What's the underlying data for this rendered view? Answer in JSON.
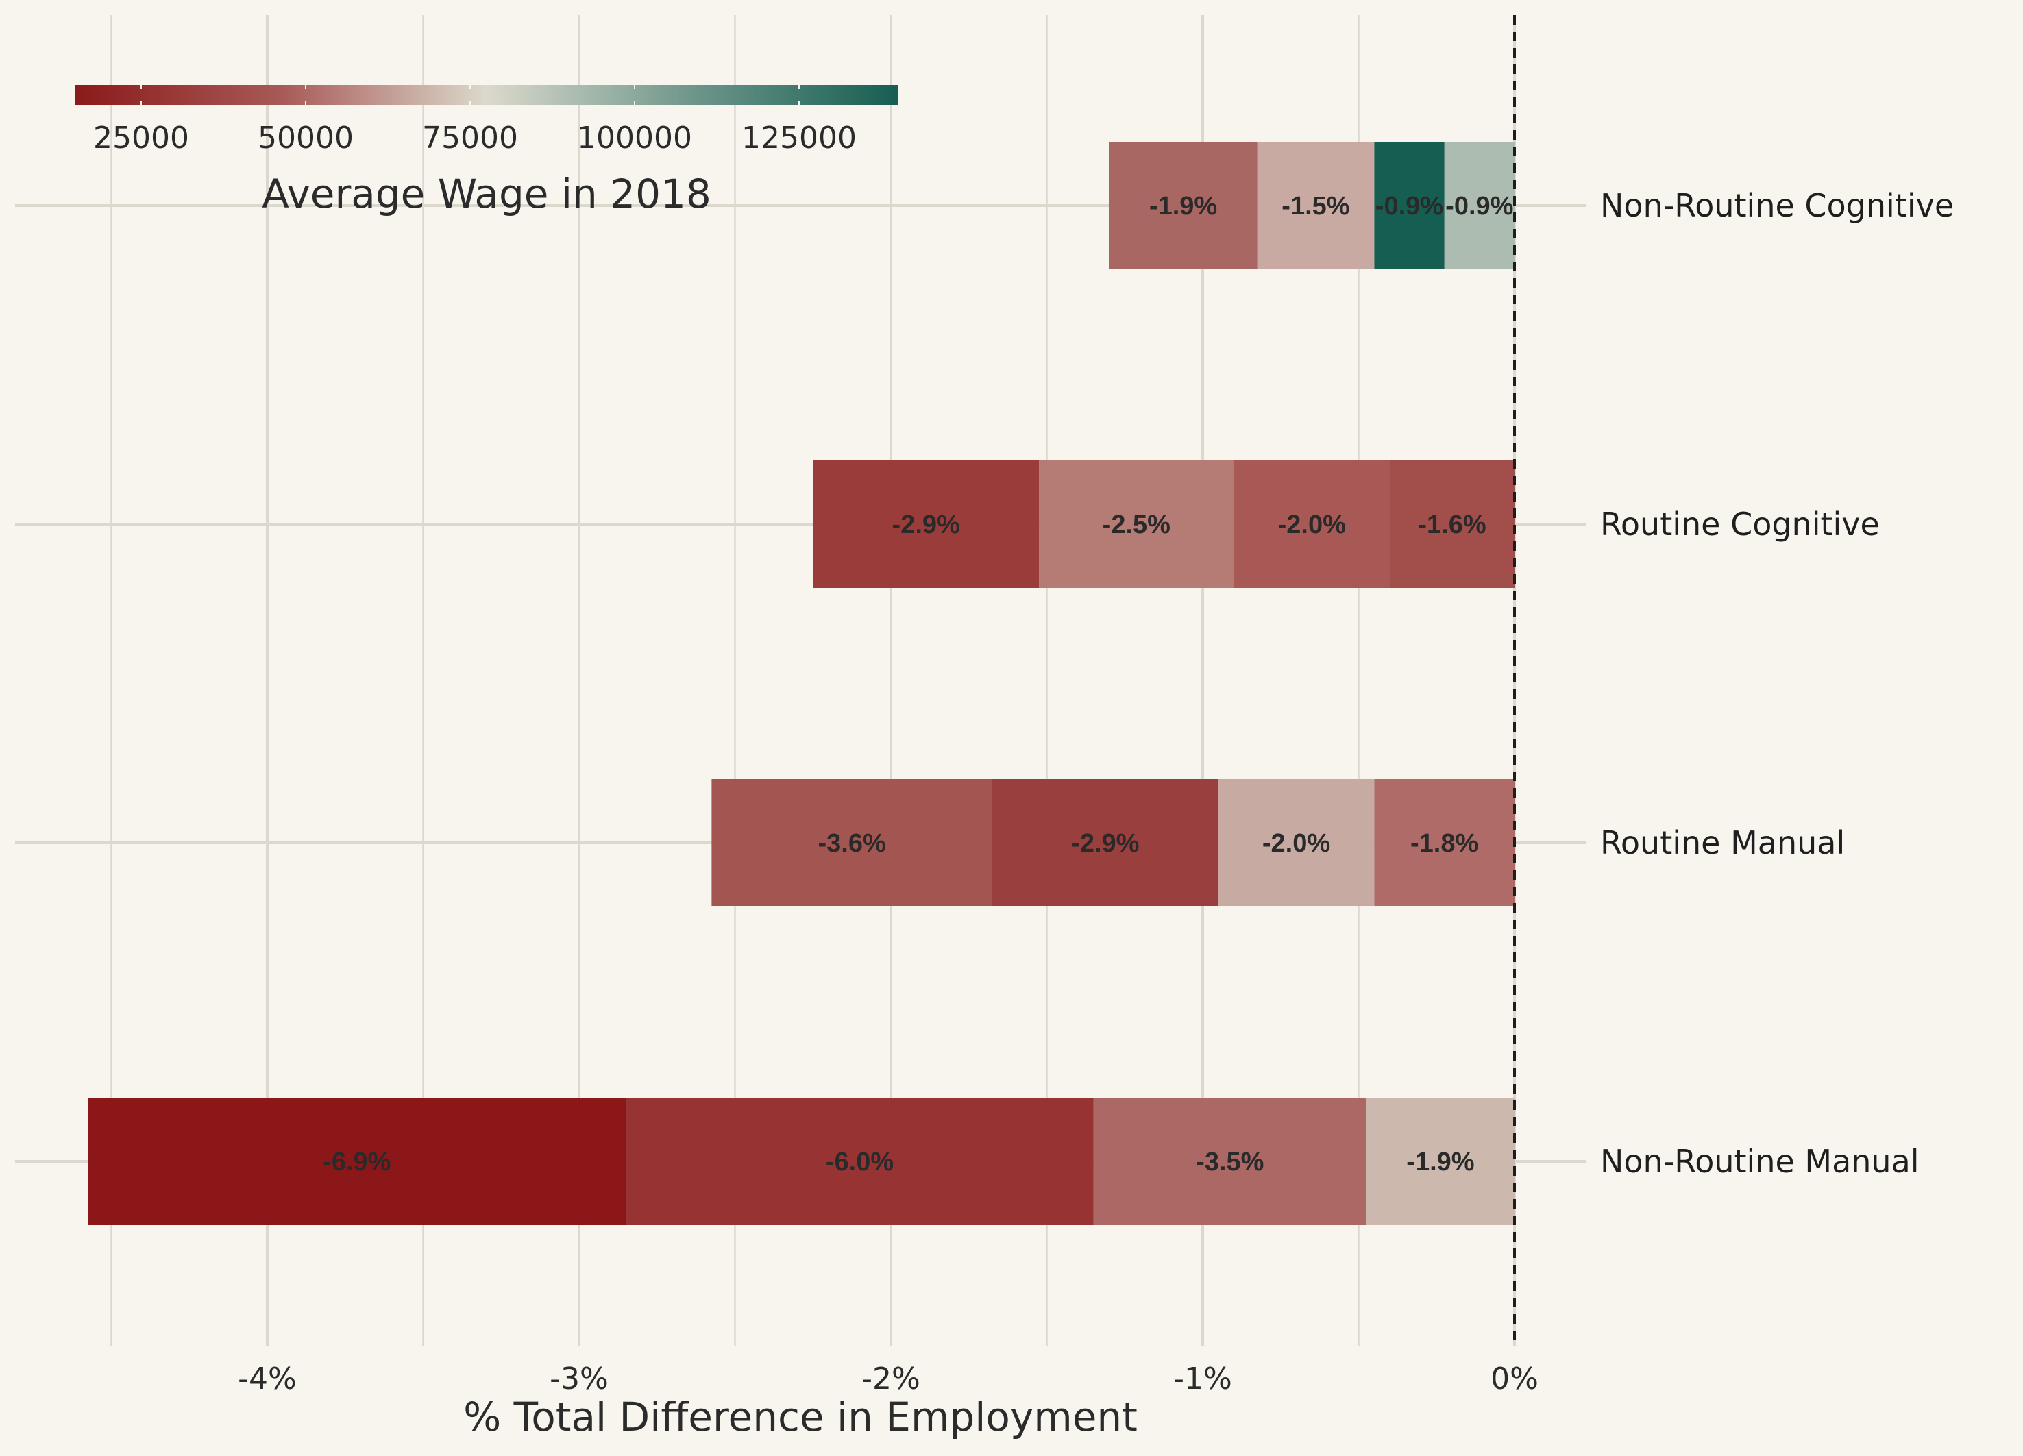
{
  "chart_data": {
    "type": "bar",
    "orientation": "horizontal",
    "stacked": true,
    "xlabel": "% Total Difference in Employment",
    "xlim": [
      -4.6,
      0.15
    ],
    "x_ticks": [
      -4,
      -3,
      -2,
      -1,
      0
    ],
    "x_tick_labels": [
      "-4%",
      "-3%",
      "-2%",
      "-1%",
      "0%"
    ],
    "grid": true,
    "reference_line": {
      "x": 0,
      "style": "dashed"
    },
    "legend": {
      "title": "Average Wage in 2018",
      "type": "colorbar",
      "placement": "top-left",
      "range": [
        15000,
        140000
      ],
      "ticks": [
        25000,
        50000,
        75000,
        100000,
        125000
      ],
      "tick_labels": [
        "25000",
        "50000",
        "75000",
        "100000",
        "125000"
      ],
      "colors": [
        "#8b1a1a",
        "#a75a57",
        "#dcd9cc",
        "#6e968b",
        "#175e52"
      ]
    },
    "categories": [
      {
        "name": "Non-Routine Cognitive",
        "segments": [
          {
            "label": "-0.9%",
            "width": 0.225,
            "wage": 85000,
            "color": "#adbcb1"
          },
          {
            "label": "-0.9%",
            "width": 0.225,
            "wage": 138000,
            "color": "#175e52"
          },
          {
            "label": "-1.5%",
            "width": 0.375,
            "wage": 62000,
            "color": "#c9aaa2"
          },
          {
            "label": "-1.9%",
            "width": 0.475,
            "wage": 42000,
            "color": "#a96763"
          }
        ]
      },
      {
        "name": "Routine Cognitive",
        "segments": [
          {
            "label": "-1.6%",
            "width": 0.4,
            "wage": 33000,
            "color": "#a24f4c"
          },
          {
            "label": "-2.0%",
            "width": 0.5,
            "wage": 37000,
            "color": "#a85955"
          },
          {
            "label": "-2.5%",
            "width": 0.625,
            "wage": 48000,
            "color": "#b57c76"
          },
          {
            "label": "-2.9%",
            "width": 0.725,
            "wage": 28000,
            "color": "#993c3a"
          }
        ]
      },
      {
        "name": "Routine Manual",
        "segments": [
          {
            "label": "-1.8%",
            "width": 0.45,
            "wage": 43000,
            "color": "#ae6b67"
          },
          {
            "label": "-2.0%",
            "width": 0.5,
            "wage": 62000,
            "color": "#c7aba2"
          },
          {
            "label": "-2.9%",
            "width": 0.725,
            "wage": 28000,
            "color": "#993f3d"
          },
          {
            "label": "-3.6%",
            "width": 0.9,
            "wage": 36000,
            "color": "#a35552"
          }
        ]
      },
      {
        "name": "Non-Routine Manual",
        "segments": [
          {
            "label": "-1.9%",
            "width": 0.475,
            "wage": 64000,
            "color": "#ccb8ad"
          },
          {
            "label": "-3.5%",
            "width": 0.875,
            "wage": 42000,
            "color": "#ac6864"
          },
          {
            "label": "-6.0%",
            "width": 1.5,
            "wage": 26000,
            "color": "#973433"
          },
          {
            "label": "-6.9%",
            "width": 1.725,
            "wage": 17000,
            "color": "#8b1718"
          }
        ]
      }
    ]
  }
}
